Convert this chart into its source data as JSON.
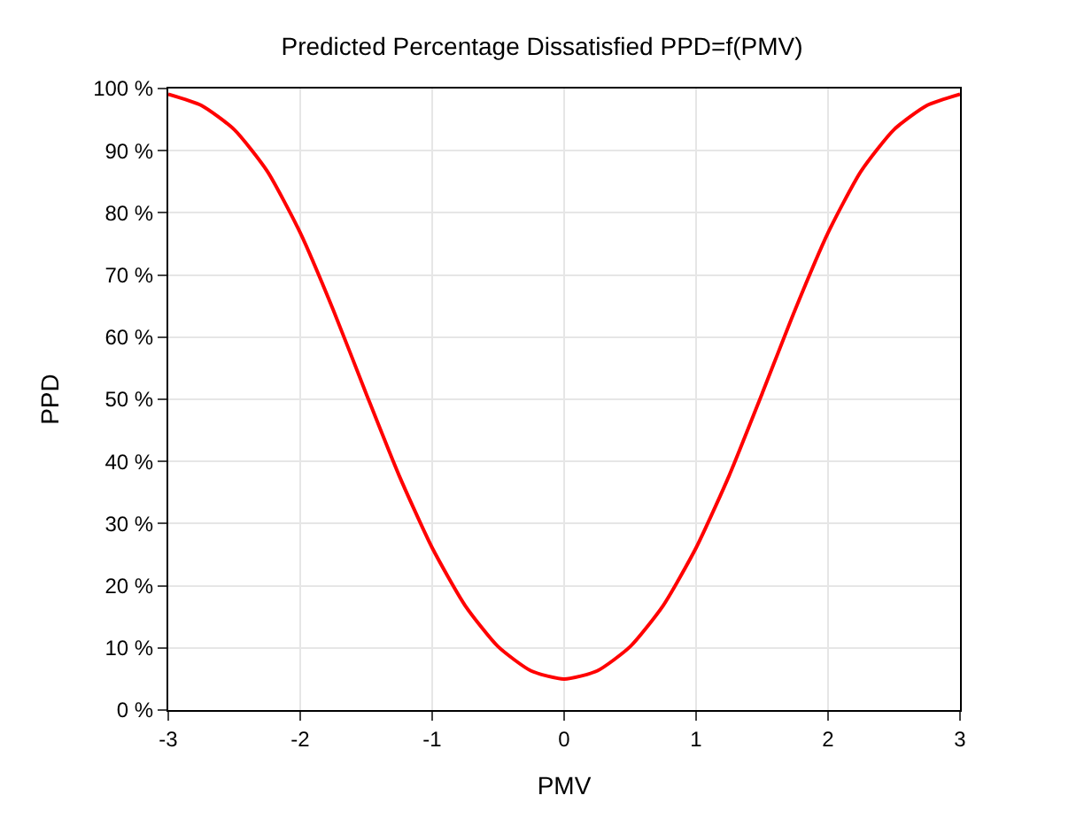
{
  "chart_data": {
    "type": "line",
    "title": "Predicted Percentage Dissatisfied PPD=f(PMV)",
    "xlabel": "PMV",
    "ylabel": "PPD",
    "x": [
      -3,
      -2.75,
      -2.5,
      -2.25,
      -2,
      -1.75,
      -1.5,
      -1.25,
      -1,
      -0.75,
      -0.5,
      -0.25,
      0,
      0.25,
      0.5,
      0.75,
      1,
      1.25,
      1.5,
      1.75,
      2,
      2.25,
      2.5,
      2.75,
      3
    ],
    "series": [
      {
        "color": "#ff0000",
        "values": [
          99.1,
          97.3,
          93.4,
          86.7,
          76.8,
          64.4,
          50.9,
          37.7,
          26.1,
          16.8,
          10.2,
          6.3,
          5,
          6.3,
          10.2,
          16.8,
          26.1,
          37.7,
          50.9,
          64.4,
          76.8,
          86.7,
          93.4,
          97.3,
          99.1
        ]
      }
    ],
    "xlim": [
      -3,
      3
    ],
    "xticks": [
      -3,
      -2,
      -1,
      0,
      1,
      2,
      3
    ],
    "ylim": [
      0,
      100
    ],
    "yticks": [
      {
        "value": 0,
        "label": "0 %"
      },
      {
        "value": 10,
        "label": "10 %"
      },
      {
        "value": 20,
        "label": "20 %"
      },
      {
        "value": 30,
        "label": "30 %"
      },
      {
        "value": 40,
        "label": "40 %"
      },
      {
        "value": 50,
        "label": "50 %"
      },
      {
        "value": 60,
        "label": "60 %"
      },
      {
        "value": 70,
        "label": "70 %"
      },
      {
        "value": 80,
        "label": "80 %"
      },
      {
        "value": 90,
        "label": "90 %"
      },
      {
        "value": 100,
        "label": "100 %"
      }
    ],
    "grid": true,
    "legend": false,
    "marker": "none",
    "line_style": "solid"
  }
}
